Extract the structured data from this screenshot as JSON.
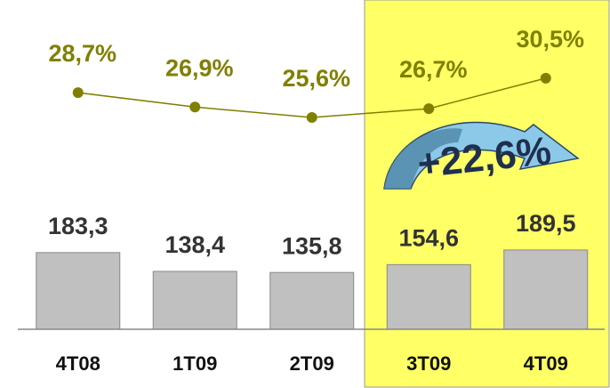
{
  "chart_data": {
    "type": "bar",
    "categories": [
      "4T08",
      "1T09",
      "2T09",
      "3T09",
      "4T09"
    ],
    "ylim": [
      0,
      400
    ],
    "y2lim": [
      20,
      35
    ],
    "series": [
      {
        "type": "bar",
        "axis": "y",
        "color": "#c0c0c0",
        "values": [
          183.3,
          138.4,
          135.8,
          154.6,
          189.5
        ],
        "value_labels": [
          "183,3",
          "138,4",
          "135,8",
          "154,6",
          "189,5"
        ]
      },
      {
        "type": "line",
        "axis": "y2",
        "color": "#808000",
        "values": [
          28.7,
          26.9,
          25.6,
          26.7,
          30.5
        ],
        "value_labels": [
          "28,7%",
          "26,9%",
          "25,6%",
          "26,7%",
          "30,5%"
        ]
      }
    ],
    "annotation": "+22,6%"
  }
}
